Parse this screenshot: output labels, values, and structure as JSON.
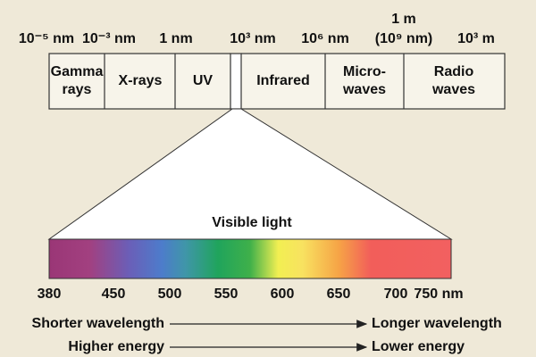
{
  "scale_labels": [
    [
      "10⁻⁵ nm"
    ],
    [
      "10⁻³ nm"
    ],
    [
      "1 nm"
    ],
    [
      "10³ nm"
    ],
    [
      "10⁶ nm"
    ],
    [
      "1 m",
      "(10⁹ nm)"
    ],
    [
      "10³ m"
    ]
  ],
  "bands": [
    [
      "Gamma",
      "rays"
    ],
    [
      "X-rays"
    ],
    [
      "UV"
    ],
    [
      "Infrared"
    ],
    [
      "Micro-",
      "waves"
    ],
    [
      "Radio",
      "waves"
    ]
  ],
  "visible": {
    "title": "Visible light",
    "ticks": [
      "380",
      "450",
      "500",
      "550",
      "600",
      "650",
      "700",
      "750 nm"
    ]
  },
  "notes": [
    {
      "from": "Shorter wavelength",
      "to": "Longer wavelength"
    },
    {
      "from": "Higher energy",
      "to": "Lower energy"
    }
  ]
}
